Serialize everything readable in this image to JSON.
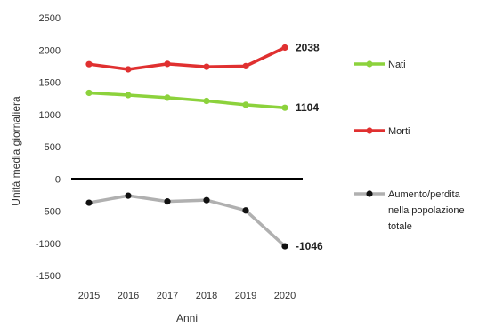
{
  "chart_data": {
    "type": "line",
    "x": [
      "2015",
      "2016",
      "2017",
      "2018",
      "2019",
      "2020"
    ],
    "xlabel": "Anni",
    "ylabel": "Unità media giornaliera",
    "ylim": [
      -1500,
      2500
    ],
    "yticks": [
      "2500",
      "2000",
      "1500",
      "1000",
      "500",
      "0",
      "-500",
      "-1000",
      "-1500"
    ],
    "grid": false,
    "legend_position": "right",
    "series": [
      {
        "name": "Nati",
        "color": "#8cd23c",
        "values": [
          1335,
          1300,
          1260,
          1210,
          1150,
          1104
        ],
        "end_label": "1104"
      },
      {
        "name": "Morti",
        "color": "#e03030",
        "values": [
          1780,
          1700,
          1785,
          1740,
          1750,
          2038
        ],
        "end_label": "2038"
      },
      {
        "name": "Aumento/perdita nella popolazione totale",
        "name_lines": [
          "Aumento/perdita",
          "nella popolazione",
          "totale"
        ],
        "color": "#b0b0b0",
        "marker_color": "#111111",
        "values": [
          -370,
          -260,
          -350,
          -330,
          -490,
          -1046
        ],
        "end_label": "-1046"
      }
    ]
  }
}
